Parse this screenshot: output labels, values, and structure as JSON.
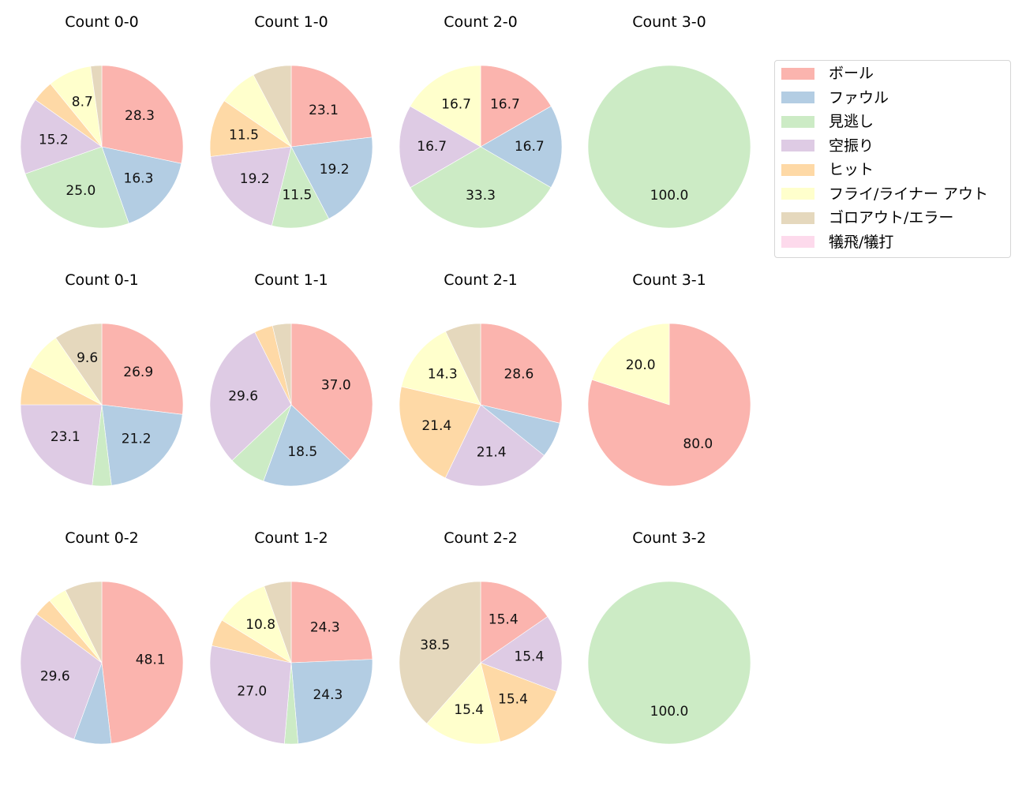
{
  "legend": {
    "items": [
      {
        "label": "ボール",
        "color": "#fbb4ae"
      },
      {
        "label": "ファウル",
        "color": "#b3cde3"
      },
      {
        "label": "見逃し",
        "color": "#ccebc5"
      },
      {
        "label": "空振り",
        "color": "#decbe4"
      },
      {
        "label": "ヒット",
        "color": "#fed9a6"
      },
      {
        "label": "フライ/ライナー アウト",
        "color": "#ffffcc"
      },
      {
        "label": "ゴロアウト/エラー",
        "color": "#e5d8bd"
      },
      {
        "label": "犠飛/犠打",
        "color": "#fddaec"
      }
    ]
  },
  "chart_data": {
    "type": "pie",
    "title": "",
    "categories": [
      "ボール",
      "ファウル",
      "見逃し",
      "空振り",
      "ヒット",
      "フライ/ライナー アウト",
      "ゴロアウト/エラー",
      "犠飛/犠打"
    ],
    "colors": [
      "#fbb4ae",
      "#b3cde3",
      "#ccebc5",
      "#decbe4",
      "#fed9a6",
      "#ffffcc",
      "#e5d8bd",
      "#fddaec"
    ],
    "start_angle": 90,
    "direction": "clockwise",
    "label_format": "%.1f (hidden for small slices)",
    "legend_position": "upper right",
    "charts": [
      {
        "title": "Count 0-0",
        "values": [
          28.3,
          16.3,
          25.0,
          15.2,
          4.3,
          8.7,
          2.2,
          0
        ],
        "labels": [
          "28.3",
          "16.3",
          "25.0",
          "15.2",
          "",
          "8.7",
          "",
          ""
        ]
      },
      {
        "title": "Count 1-0",
        "values": [
          23.1,
          19.2,
          11.5,
          19.2,
          11.5,
          7.7,
          7.7,
          0
        ],
        "labels": [
          "23.1",
          "19.2",
          "11.5",
          "19.2",
          "11.5",
          "",
          "",
          ""
        ]
      },
      {
        "title": "Count 2-0",
        "values": [
          16.7,
          16.7,
          33.3,
          16.7,
          0,
          16.7,
          0,
          0
        ],
        "labels": [
          "16.7",
          "16.7",
          "33.3",
          "16.7",
          "",
          "16.7",
          "",
          ""
        ]
      },
      {
        "title": "Count 3-0",
        "values": [
          0,
          0,
          100.0,
          0,
          0,
          0,
          0,
          0
        ],
        "labels": [
          "",
          "",
          "100.0",
          "",
          "",
          "",
          "",
          ""
        ]
      },
      {
        "title": "Count 0-1",
        "values": [
          26.9,
          21.2,
          3.8,
          23.1,
          7.7,
          7.7,
          9.6,
          0
        ],
        "labels": [
          "26.9",
          "21.2",
          "",
          "23.1",
          "",
          "",
          "9.6",
          ""
        ]
      },
      {
        "title": "Count 1-1",
        "values": [
          37.0,
          18.5,
          7.4,
          29.6,
          3.7,
          0,
          3.7,
          0
        ],
        "labels": [
          "37.0",
          "18.5",
          "",
          "29.6",
          "",
          "",
          "",
          ""
        ]
      },
      {
        "title": "Count 2-1",
        "values": [
          28.6,
          7.1,
          0,
          21.4,
          21.4,
          14.3,
          7.1,
          0
        ],
        "labels": [
          "28.6",
          "",
          "",
          "21.4",
          "21.4",
          "14.3",
          "",
          ""
        ]
      },
      {
        "title": "Count 3-1",
        "values": [
          80.0,
          0,
          0,
          0,
          0,
          20.0,
          0,
          0
        ],
        "labels": [
          "80.0",
          "",
          "",
          "",
          "",
          "20.0",
          "",
          ""
        ]
      },
      {
        "title": "Count 0-2",
        "values": [
          48.1,
          7.4,
          0,
          29.6,
          3.7,
          3.7,
          7.4,
          0
        ],
        "labels": [
          "48.1",
          "",
          "",
          "29.6",
          "",
          "",
          "",
          ""
        ]
      },
      {
        "title": "Count 1-2",
        "values": [
          24.3,
          24.3,
          2.7,
          27.0,
          5.4,
          10.8,
          5.4,
          0
        ],
        "labels": [
          "24.3",
          "24.3",
          "",
          "27.0",
          "",
          "10.8",
          "",
          ""
        ]
      },
      {
        "title": "Count 2-2",
        "values": [
          15.4,
          0,
          0,
          15.4,
          15.4,
          15.4,
          38.5,
          0
        ],
        "labels": [
          "15.4",
          "",
          "",
          "15.4",
          "15.4",
          "15.4",
          "38.5",
          ""
        ]
      },
      {
        "title": "Count 3-2",
        "values": [
          0,
          0,
          100.0,
          0,
          0,
          0,
          0,
          0
        ],
        "labels": [
          "",
          "",
          "100.0",
          "",
          "",
          "",
          "",
          ""
        ]
      }
    ]
  }
}
